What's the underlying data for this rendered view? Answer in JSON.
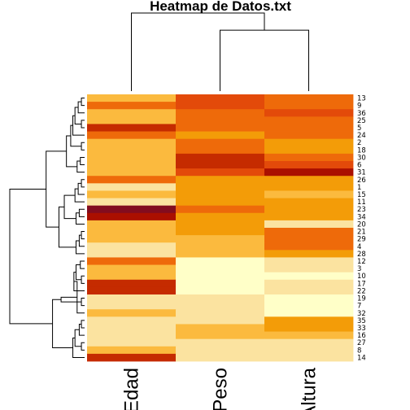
{
  "chart_data": {
    "type": "heatmap",
    "title": "Heatmap de Datos.txt",
    "columns": [
      "Edad",
      "Peso",
      "Altura"
    ],
    "rows": [
      "13",
      "9",
      "36",
      "25",
      "5",
      "24",
      "2",
      "18",
      "30",
      "6",
      "31",
      "26",
      "1",
      "15",
      "11",
      "23",
      "34",
      "20",
      "21",
      "29",
      "4",
      "28",
      "12",
      "3",
      "10",
      "17",
      "22",
      "19",
      "7",
      "32",
      "35",
      "33",
      "16",
      "27",
      "8",
      "14"
    ],
    "palette": [
      "#FFFFC8",
      "#FBE3A0",
      "#FBBA3E",
      "#F39C08",
      "#EE6A0A",
      "#E34A0A",
      "#C52B00",
      "#AA0F00",
      "#820C1F"
    ],
    "values": [
      [
        2,
        5,
        4
      ],
      [
        4,
        5,
        4
      ],
      [
        2,
        4,
        5
      ],
      [
        2,
        4,
        4
      ],
      [
        6,
        4,
        4
      ],
      [
        4,
        3,
        4
      ],
      [
        2,
        4,
        3
      ],
      [
        2,
        4,
        3
      ],
      [
        2,
        6,
        4
      ],
      [
        2,
        6,
        5
      ],
      [
        2,
        5,
        7
      ],
      [
        4,
        3,
        3
      ],
      [
        1,
        3,
        3
      ],
      [
        2,
        3,
        2
      ],
      [
        1,
        3,
        3
      ],
      [
        8,
        4,
        3
      ],
      [
        7,
        3,
        3
      ],
      [
        2,
        3,
        1
      ],
      [
        2,
        3,
        4
      ],
      [
        2,
        2,
        4
      ],
      [
        1,
        2,
        4
      ],
      [
        1,
        2,
        3
      ],
      [
        4,
        0,
        1
      ],
      [
        2,
        0,
        1
      ],
      [
        2,
        0,
        0
      ],
      [
        6,
        0,
        1
      ],
      [
        6,
        0,
        1
      ],
      [
        1,
        1,
        0
      ],
      [
        1,
        1,
        0
      ],
      [
        2,
        1,
        0
      ],
      [
        1,
        1,
        3
      ],
      [
        1,
        2,
        3
      ],
      [
        1,
        2,
        2
      ],
      [
        1,
        1,
        1
      ],
      [
        2,
        1,
        1
      ],
      [
        6,
        1,
        1
      ]
    ],
    "column_dendrogram": [
      [
        1,
        2,
        0.78
      ],
      [
        0,
        -1,
        1.0
      ]
    ],
    "row_dendrogram": [
      [
        0,
        1,
        0.03
      ],
      [
        -1,
        2,
        0.06
      ],
      [
        3,
        4,
        0.03
      ],
      [
        -2,
        -3,
        0.09
      ],
      [
        5,
        -4,
        0.11
      ],
      [
        6,
        7,
        0.03
      ],
      [
        -5,
        -6,
        0.13
      ],
      [
        8,
        9,
        0.04
      ],
      [
        -8,
        10,
        0.07
      ],
      [
        -7,
        -9,
        0.17
      ],
      [
        11,
        12,
        0.03
      ],
      [
        -11,
        13,
        0.06
      ],
      [
        -12,
        14,
        0.09
      ],
      [
        15,
        16,
        0.05
      ],
      [
        -14,
        17,
        0.08
      ],
      [
        -13,
        -15,
        0.19
      ],
      [
        18,
        19,
        0.03
      ],
      [
        -17,
        20,
        0.05
      ],
      [
        -18,
        21,
        0.08
      ],
      [
        -16,
        -19,
        0.24
      ],
      [
        -10,
        -20,
        0.36
      ],
      [
        22,
        23,
        0.04
      ],
      [
        24,
        25,
        0.03
      ],
      [
        -22,
        -23,
        0.08
      ],
      [
        26,
        -24,
        0.1
      ],
      [
        27,
        28,
        0.03
      ],
      [
        -25,
        29,
        0.07
      ],
      [
        -26,
        -27,
        0.22
      ],
      [
        30,
        31,
        0.03
      ],
      [
        32,
        -29,
        0.05
      ],
      [
        33,
        34,
        0.03
      ],
      [
        -30,
        -31,
        0.09
      ],
      [
        -32,
        35,
        0.11
      ],
      [
        -28,
        -33,
        0.3
      ],
      [
        -21,
        -34,
        0.7
      ]
    ]
  }
}
